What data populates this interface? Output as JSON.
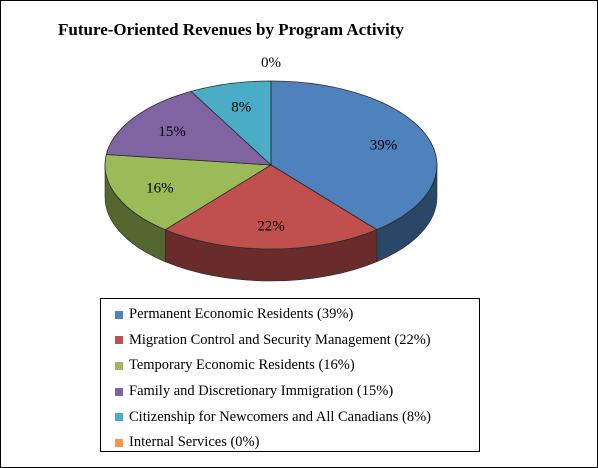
{
  "chart_data": {
    "type": "pie",
    "title": "Future-Oriented Revenues by Program Activity",
    "three_d": true,
    "legend_position": "bottom",
    "slices": [
      {
        "label": "Permanent Economic Residents",
        "value": 39,
        "display": "39%",
        "legend": "Permanent Economic Residents (39%)",
        "color": "#4f81bd"
      },
      {
        "label": "Migration Control and Security Management",
        "value": 22,
        "display": "22%",
        "legend": "Migration Control and Security Management  (22%)",
        "color": "#c0504d"
      },
      {
        "label": "Temporary Economic Residents",
        "value": 16,
        "display": "16%",
        "legend": "Temporary Economic Residents (16%)",
        "color": "#9bbb59"
      },
      {
        "label": "Family and Discretionary Immigration",
        "value": 15,
        "display": "15%",
        "legend": "Family and Discretionary  Immigration (15%)",
        "color": "#8064a2"
      },
      {
        "label": "Citizenship for Newcomers and All Canadians",
        "value": 8,
        "display": "8%",
        "legend": "Citizenship for Newcomers and All Canadians (8%)",
        "color": "#4bacc6"
      },
      {
        "label": "Internal Services",
        "value": 0,
        "display": "0%",
        "legend": "Internal Services (0%)",
        "color": "#f79646"
      }
    ]
  }
}
